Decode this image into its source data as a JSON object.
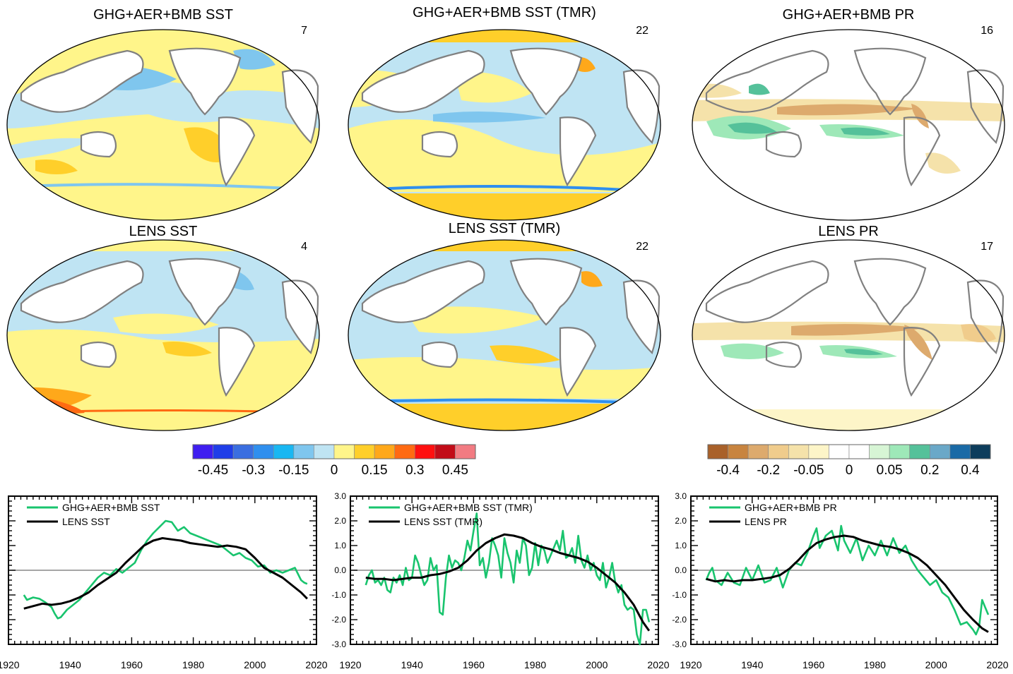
{
  "maps": [
    {
      "title": "GHG+AER+BMB SST",
      "number": "7",
      "kind": "sst"
    },
    {
      "title": "GHG+AER+BMB SST (TMR)",
      "number": "22",
      "kind": "sst"
    },
    {
      "title": "GHG+AER+BMB PR",
      "number": "16",
      "kind": "pr"
    },
    {
      "title": "LENS SST",
      "number": "4",
      "kind": "sst"
    },
    {
      "title": "LENS SST (TMR)",
      "number": "22",
      "kind": "sst"
    },
    {
      "title": "LENS PR",
      "number": "17",
      "kind": "pr"
    }
  ],
  "colorbars": [
    {
      "name": "sst-colorbar",
      "colors": [
        "#3f1ef0",
        "#1f3ee8",
        "#3a6ee0",
        "#2f8fee",
        "#19b7f2",
        "#7fc6ee",
        "#bfe4f3",
        "#fff58a",
        "#ffcf2a",
        "#ffa81a",
        "#ff6a12",
        "#ff1010",
        "#c20c18",
        "#f27b82"
      ],
      "labels": [
        "-0.45",
        "-0.3",
        "-0.15",
        "0",
        "0.15",
        "0.3",
        "0.45"
      ]
    },
    {
      "name": "pr-colorbar",
      "colors": [
        "#a9612a",
        "#c8843f",
        "#ddaa6d",
        "#f0cc8c",
        "#f5e2aa",
        "#fdf5c8",
        "#ffffff",
        "#ffffff",
        "#d7f5d5",
        "#9ee8b8",
        "#55c19a",
        "#6aa8c8",
        "#1a6aa6",
        "#0d3d5c"
      ],
      "labels": [
        "-0.4",
        "-0.2",
        "-0.05",
        "0",
        "0.05",
        "0.2",
        "0.4"
      ]
    }
  ],
  "chart_data": [
    {
      "type": "line",
      "title": "",
      "xlabel": "",
      "ylabel": "",
      "xlim": [
        1920,
        2020
      ],
      "ylim": [
        -3.0,
        3.0
      ],
      "xticks": [
        1920,
        1940,
        1960,
        1980,
        2000,
        2020
      ],
      "yticks": [],
      "series": [
        {
          "name": "GHG+AER+BMB SST",
          "color": "#19c46e",
          "x": [
            1925,
            1926,
            1928,
            1930,
            1932,
            1934,
            1935,
            1936,
            1937,
            1939,
            1941,
            1943,
            1945,
            1947,
            1949,
            1951,
            1953,
            1955,
            1957,
            1959,
            1961,
            1963,
            1965,
            1967,
            1969,
            1971,
            1973,
            1975,
            1977,
            1979,
            1981,
            1983,
            1985,
            1987,
            1989,
            1991,
            1993,
            1995,
            1997,
            1999,
            2001,
            2003,
            2005,
            2007,
            2009,
            2011,
            2013,
            2015,
            2016,
            2017
          ],
          "y": [
            -1.0,
            -1.2,
            -1.1,
            -1.15,
            -1.3,
            -1.5,
            -1.75,
            -1.95,
            -1.9,
            -1.6,
            -1.4,
            -1.2,
            -0.9,
            -0.6,
            -0.3,
            -0.1,
            -0.2,
            0.05,
            -0.1,
            0.1,
            0.3,
            0.8,
            1.2,
            1.5,
            1.75,
            2.0,
            1.95,
            1.6,
            1.75,
            1.5,
            1.4,
            1.3,
            1.2,
            1.1,
            1.0,
            0.8,
            0.6,
            0.7,
            0.5,
            0.4,
            0.15,
            0.2,
            -0.1,
            0.0,
            -0.1,
            0.0,
            0.1,
            -0.4,
            -0.5,
            -0.55
          ]
        },
        {
          "name": "LENS SST",
          "color": "#000000",
          "x": [
            1925,
            1928,
            1931,
            1934,
            1937,
            1940,
            1943,
            1946,
            1949,
            1952,
            1955,
            1958,
            1961,
            1964,
            1967,
            1970,
            1973,
            1976,
            1979,
            1982,
            1985,
            1988,
            1991,
            1994,
            1997,
            2000,
            2003,
            2006,
            2009,
            2012,
            2015,
            2017
          ],
          "y": [
            -1.55,
            -1.45,
            -1.35,
            -1.4,
            -1.35,
            -1.25,
            -1.1,
            -0.9,
            -0.6,
            -0.35,
            -0.1,
            0.3,
            0.65,
            1.0,
            1.2,
            1.3,
            1.25,
            1.2,
            1.1,
            1.05,
            1.0,
            0.95,
            1.0,
            0.95,
            0.85,
            0.5,
            0.1,
            -0.1,
            -0.3,
            -0.6,
            -0.9,
            -1.15
          ]
        }
      ]
    },
    {
      "type": "line",
      "title": "",
      "xlabel": "",
      "ylabel": "",
      "xlim": [
        1920,
        2020
      ],
      "ylim": [
        -3.0,
        3.0
      ],
      "xticks": [
        1920,
        1940,
        1960,
        1980,
        2000,
        2020
      ],
      "yticks": [
        -3.0,
        -2.0,
        -1.0,
        0.0,
        1.0,
        2.0,
        3.0
      ],
      "series": [
        {
          "name": "GHG+AER+BMB SST (TMR)",
          "color": "#19c46e",
          "x": [
            1925,
            1926,
            1927,
            1928,
            1929,
            1930,
            1931,
            1932,
            1933,
            1934,
            1935,
            1936,
            1937,
            1938,
            1939,
            1940,
            1941,
            1942,
            1943,
            1944,
            1945,
            1946,
            1947,
            1948,
            1949,
            1950,
            1951,
            1952,
            1953,
            1954,
            1955,
            1956,
            1957,
            1958,
            1959,
            1960,
            1961,
            1962,
            1963,
            1964,
            1965,
            1966,
            1967,
            1968,
            1969,
            1970,
            1971,
            1972,
            1973,
            1974,
            1975,
            1976,
            1977,
            1978,
            1979,
            1980,
            1981,
            1982,
            1983,
            1984,
            1985,
            1986,
            1987,
            1988,
            1989,
            1990,
            1991,
            1992,
            1993,
            1994,
            1995,
            1996,
            1997,
            1998,
            1999,
            2000,
            2001,
            2002,
            2003,
            2004,
            2005,
            2006,
            2007,
            2008,
            2009,
            2010,
            2011,
            2012,
            2013,
            2014,
            2015,
            2016,
            2017
          ],
          "y": [
            -0.6,
            -0.2,
            0.0,
            -0.5,
            -0.4,
            -0.6,
            -0.3,
            -0.8,
            -0.9,
            -0.3,
            -0.5,
            -0.2,
            -0.6,
            0.1,
            -0.4,
            -0.3,
            0.6,
            0.3,
            -0.2,
            -0.6,
            -0.4,
            0.5,
            0.0,
            0.2,
            -1.7,
            -1.8,
            -0.3,
            0.6,
            0.1,
            0.4,
            0.3,
            0.0,
            0.5,
            1.2,
            0.8,
            1.6,
            2.3,
            0.2,
            0.5,
            -0.3,
            0.3,
            1.3,
            1.0,
            0.6,
            -0.3,
            1.3,
            0.7,
            0.3,
            -0.5,
            0.8,
            0.3,
            1.3,
            1.0,
            -0.2,
            0.1,
            1.1,
            0.2,
            1.0,
            0.8,
            0.3,
            0.6,
            0.9,
            1.2,
            0.8,
            1.6,
            0.5,
            0.6,
            0.9,
            0.3,
            1.4,
            0.4,
            0.1,
            0.6,
            0.0,
            0.3,
            -0.2,
            -0.4,
            0.3,
            -0.7,
            -0.3,
            0.3,
            -0.5,
            -0.9,
            -0.6,
            -1.4,
            -1.6,
            -1.5,
            -1.6,
            -2.6,
            -3.0,
            -1.6,
            -1.6,
            -2.1
          ]
        },
        {
          "name": "LENS SST (TMR)",
          "color": "#000000",
          "x": [
            1925,
            1928,
            1931,
            1934,
            1937,
            1940,
            1943,
            1946,
            1949,
            1952,
            1955,
            1958,
            1961,
            1964,
            1967,
            1970,
            1973,
            1976,
            1979,
            1982,
            1985,
            1988,
            1991,
            1994,
            1997,
            2000,
            2003,
            2006,
            2009,
            2012,
            2015,
            2017
          ],
          "y": [
            -0.3,
            -0.35,
            -0.35,
            -0.4,
            -0.35,
            -0.3,
            -0.3,
            -0.2,
            -0.15,
            -0.05,
            0.1,
            0.4,
            0.8,
            1.1,
            1.3,
            1.45,
            1.4,
            1.3,
            1.1,
            0.95,
            0.85,
            0.7,
            0.6,
            0.5,
            0.35,
            0.1,
            -0.2,
            -0.5,
            -0.9,
            -1.4,
            -2.1,
            -2.45
          ]
        }
      ]
    },
    {
      "type": "line",
      "title": "",
      "xlabel": "",
      "ylabel": "",
      "xlim": [
        1920,
        2020
      ],
      "ylim": [
        -3.0,
        3.0
      ],
      "xticks": [
        1920,
        1940,
        1960,
        1980,
        2000,
        2020
      ],
      "yticks": [
        -3.0,
        -2.0,
        -1.0,
        0.0,
        1.0,
        2.0,
        3.0
      ],
      "series": [
        {
          "name": "GHG+AER+BMB PR",
          "color": "#19c46e",
          "x": [
            1925,
            1926,
            1927,
            1928,
            1930,
            1932,
            1934,
            1936,
            1938,
            1940,
            1942,
            1944,
            1946,
            1948,
            1950,
            1952,
            1954,
            1956,
            1958,
            1960,
            1961,
            1962,
            1964,
            1966,
            1968,
            1969,
            1970,
            1972,
            1974,
            1976,
            1978,
            1980,
            1982,
            1984,
            1986,
            1988,
            1990,
            1992,
            1994,
            1996,
            1998,
            2000,
            2002,
            2004,
            2006,
            2008,
            2010,
            2012,
            2013,
            2014,
            2015,
            2016,
            2017
          ],
          "y": [
            -0.4,
            -0.1,
            0.1,
            -0.4,
            -0.6,
            -0.1,
            -0.5,
            -0.6,
            0.1,
            -0.4,
            0.2,
            -0.5,
            -0.4,
            0.1,
            -0.7,
            0.0,
            0.3,
            0.2,
            0.7,
            1.4,
            1.7,
            0.9,
            1.4,
            1.6,
            0.8,
            1.8,
            1.2,
            0.7,
            1.3,
            0.4,
            1.0,
            0.6,
            1.2,
            0.6,
            1.3,
            0.7,
            1.0,
            0.4,
            0.0,
            -0.3,
            -0.6,
            -0.4,
            -0.9,
            -1.1,
            -1.6,
            -2.2,
            -2.1,
            -2.4,
            -2.6,
            -2.3,
            -1.2,
            -1.5,
            -1.8
          ]
        },
        {
          "name": "LENS PR",
          "color": "#000000",
          "x": [
            1925,
            1928,
            1931,
            1934,
            1937,
            1940,
            1943,
            1946,
            1949,
            1952,
            1955,
            1958,
            1961,
            1964,
            1967,
            1970,
            1973,
            1976,
            1979,
            1982,
            1985,
            1988,
            1991,
            1994,
            1997,
            2000,
            2003,
            2006,
            2009,
            2012,
            2015,
            2017
          ],
          "y": [
            -0.35,
            -0.45,
            -0.4,
            -0.45,
            -0.4,
            -0.4,
            -0.35,
            -0.3,
            -0.2,
            0.05,
            0.4,
            0.8,
            1.1,
            1.25,
            1.35,
            1.4,
            1.35,
            1.2,
            1.1,
            1.0,
            0.95,
            0.85,
            0.7,
            0.5,
            0.2,
            -0.2,
            -0.6,
            -1.1,
            -1.6,
            -2.0,
            -2.35,
            -2.5
          ]
        }
      ]
    }
  ]
}
